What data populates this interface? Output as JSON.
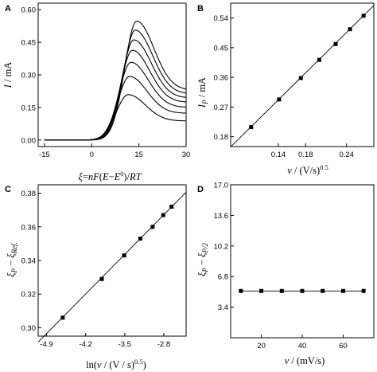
{
  "chart_data": [
    {
      "panel": "A",
      "type": "line",
      "xlabel": "ξ=nF(E−E⁰)/RT",
      "ylabel": "I / mA",
      "xlim": [
        -17,
        30
      ],
      "ylim": [
        -0.03,
        0.63
      ],
      "xticks": [
        "-15",
        "0",
        "15",
        "30"
      ],
      "yticks": [
        "0.00",
        "0.15",
        "0.30",
        "0.45",
        "0.60"
      ],
      "series": [
        {
          "peak": 0.209
        },
        {
          "peak": 0.293
        },
        {
          "peak": 0.358
        },
        {
          "peak": 0.413
        },
        {
          "peak": 0.461
        },
        {
          "peak": 0.506
        },
        {
          "peak": 0.547
        }
      ]
    },
    {
      "panel": "B",
      "type": "scatter",
      "xlabel": "ν / (V/s)^0.5",
      "ylabel": "Ip / mA",
      "xlim": [
        0.07,
        0.28
      ],
      "ylim": [
        0.15,
        0.585
      ],
      "xticks": [
        "0.14",
        "0.18",
        "0.24"
      ],
      "yticks": [
        "0.18",
        "0.27",
        "0.36",
        "0.45",
        "0.54"
      ],
      "x": [
        0.1,
        0.141,
        0.173,
        0.2,
        0.224,
        0.245,
        0.265
      ],
      "y": [
        0.209,
        0.293,
        0.358,
        0.413,
        0.461,
        0.506,
        0.547
      ],
      "fit": [
        [
          0.07,
          0.149
        ],
        [
          0.28,
          0.578
        ]
      ]
    },
    {
      "panel": "C",
      "type": "scatter",
      "xlabel": "ln(ν / (V / s)^0.5)",
      "ylabel": "ξp − ξRef.",
      "xlim": [
        -5.05,
        -2.4
      ],
      "ylim": [
        0.295,
        0.385
      ],
      "xticks": [
        "-4.9",
        "-4.2",
        "-3.5",
        "-2.8"
      ],
      "yticks": [
        "0.30",
        "0.32",
        "0.34",
        "0.36",
        "0.38"
      ],
      "x": [
        -4.61,
        -3.91,
        -3.51,
        -3.22,
        -3.0,
        -2.81,
        -2.66
      ],
      "y": [
        0.306,
        0.329,
        0.343,
        0.353,
        0.36,
        0.367,
        0.372
      ],
      "fit": [
        [
          -5.05,
          0.2915
        ],
        [
          -2.4,
          0.3806
        ]
      ]
    },
    {
      "panel": "D",
      "type": "scatter",
      "xlabel": "ν / (mV/s)",
      "ylabel": "ξp − ξp/2",
      "xlim": [
        5,
        75
      ],
      "ylim": [
        0,
        17
      ],
      "xticks": [
        "20",
        "40",
        "60"
      ],
      "yticks": [
        "3.4",
        "6.8",
        "10.2",
        "13.6",
        "17.0"
      ],
      "x": [
        10,
        20,
        30,
        40,
        50,
        60,
        70
      ],
      "y": [
        5.2,
        5.2,
        5.2,
        5.2,
        5.2,
        5.2,
        5.2
      ]
    }
  ]
}
